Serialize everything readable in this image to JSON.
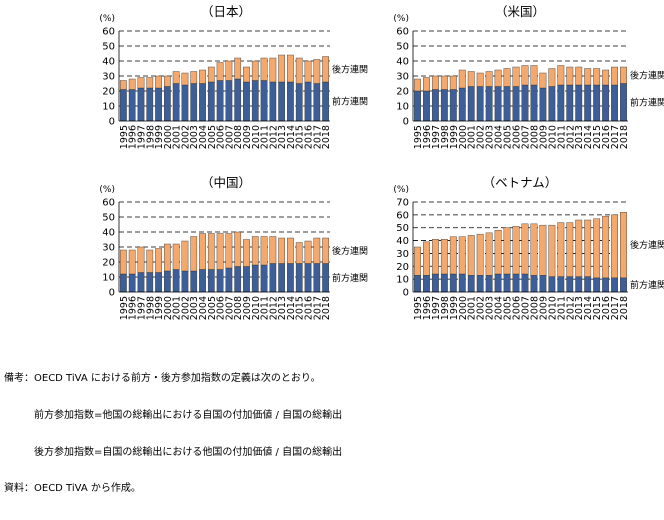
{
  "figure": {
    "notes": [
      "備考：OECD TiVA における前方・後方参加指数の定義は次のとおり。",
      "　　　前方参加指数=他国の総輸出における自国の付加価値 / 自国の総輸出",
      "　　　後方参加指数=自国の総輸出における他国の付加価値 / 自国の総輸出",
      "資料：OECD TiVA から作成。"
    ]
  },
  "colors": {
    "forward": "#3d5e96",
    "backward": "#f3a86e",
    "bar_edge": "#333333",
    "dash": "#000000"
  },
  "chart_data": [
    {
      "type": "bar",
      "stacked": true,
      "title": "（日本）",
      "unit_label": "(%)",
      "ylim": [
        0,
        60
      ],
      "yticks": [
        0,
        10,
        20,
        30,
        40,
        50,
        60
      ],
      "grid": "dashed horizontal",
      "x": [
        "1995",
        "1996",
        "1997",
        "1998",
        "1999",
        "2000",
        "2001",
        "2002",
        "2003",
        "2004",
        "2005",
        "2006",
        "2007",
        "2008",
        "2009",
        "2010",
        "2011",
        "2012",
        "2013",
        "2014",
        "2015",
        "2016",
        "2017",
        "2018"
      ],
      "series": [
        {
          "name": "前方連関",
          "values": [
            21,
            21,
            22,
            22,
            22,
            23,
            25,
            24,
            25,
            25,
            26,
            27,
            27,
            28,
            26,
            27,
            27,
            26,
            26,
            26,
            25,
            26,
            25,
            26
          ]
        },
        {
          "name": "後方連関",
          "values": [
            6,
            7,
            7,
            7,
            8,
            7,
            8,
            8,
            8,
            9,
            10,
            12,
            13,
            14,
            10,
            13,
            15,
            16,
            18,
            18,
            17,
            14,
            16,
            17
          ]
        }
      ]
    },
    {
      "type": "bar",
      "stacked": true,
      "title": "（米国）",
      "unit_label": "(%)",
      "ylim": [
        0,
        60
      ],
      "yticks": [
        0,
        10,
        20,
        30,
        40,
        50,
        60
      ],
      "grid": "dashed horizontal",
      "x": [
        "1995",
        "1996",
        "1997",
        "1998",
        "1999",
        "2000",
        "2001",
        "2002",
        "2003",
        "2004",
        "2005",
        "2006",
        "2007",
        "2008",
        "2009",
        "2010",
        "2011",
        "2012",
        "2013",
        "2014",
        "2015",
        "2016",
        "2017",
        "2018"
      ],
      "series": [
        {
          "name": "前方連関",
          "values": [
            20,
            20,
            21,
            21,
            21,
            22,
            23,
            23,
            23,
            23,
            23,
            23,
            24,
            24,
            22,
            23,
            24,
            24,
            24,
            24,
            24,
            24,
            24,
            25
          ]
        },
        {
          "name": "後方連関",
          "values": [
            8,
            9,
            9,
            9,
            9,
            12,
            10,
            9,
            10,
            11,
            12,
            13,
            13,
            13,
            10,
            12,
            13,
            12,
            12,
            11,
            11,
            10,
            12,
            11
          ]
        }
      ]
    },
    {
      "type": "bar",
      "stacked": true,
      "title": "（中国）",
      "unit_label": "(%)",
      "ylim": [
        0,
        60
      ],
      "yticks": [
        0,
        10,
        20,
        30,
        40,
        50,
        60
      ],
      "grid": "dashed horizontal",
      "x": [
        "1995",
        "1996",
        "1997",
        "1998",
        "1999",
        "2000",
        "2001",
        "2002",
        "2003",
        "2004",
        "2005",
        "2006",
        "2007",
        "2008",
        "2009",
        "2010",
        "2011",
        "2012",
        "2013",
        "2014",
        "2015",
        "2016",
        "2017",
        "2018"
      ],
      "series": [
        {
          "name": "前方連関",
          "values": [
            12,
            12,
            13,
            13,
            13,
            14,
            15,
            14,
            14,
            15,
            15,
            15,
            16,
            17,
            17,
            18,
            18,
            19,
            19,
            19,
            19,
            19,
            19,
            19
          ]
        },
        {
          "name": "後方連関",
          "values": [
            16,
            16,
            17,
            15,
            16,
            18,
            17,
            20,
            23,
            24,
            24,
            24,
            23,
            23,
            18,
            19,
            19,
            18,
            17,
            17,
            14,
            15,
            17,
            17
          ]
        }
      ]
    },
    {
      "type": "bar",
      "stacked": true,
      "title": "（ベトナム）",
      "unit_label": "(%)",
      "ylim": [
        0,
        70
      ],
      "yticks": [
        0,
        10,
        20,
        30,
        40,
        50,
        60,
        70
      ],
      "grid": "dashed horizontal",
      "x": [
        "1995",
        "1996",
        "1997",
        "1998",
        "1999",
        "2000",
        "2001",
        "2002",
        "2003",
        "2004",
        "2005",
        "2006",
        "2007",
        "2008",
        "2009",
        "2010",
        "2011",
        "2012",
        "2013",
        "2014",
        "2015",
        "2016",
        "2017",
        "2018"
      ],
      "series": [
        {
          "name": "前方連関",
          "values": [
            13,
            13,
            14,
            14,
            14,
            14,
            13,
            13,
            13,
            14,
            14,
            14,
            14,
            13,
            13,
            12,
            12,
            12,
            12,
            12,
            11,
            11,
            11,
            11
          ]
        },
        {
          "name": "後方連関",
          "values": [
            22,
            26,
            27,
            27,
            29,
            29,
            31,
            32,
            33,
            34,
            36,
            37,
            39,
            40,
            39,
            40,
            42,
            42,
            44,
            44,
            46,
            48,
            49,
            51
          ]
        }
      ]
    }
  ]
}
